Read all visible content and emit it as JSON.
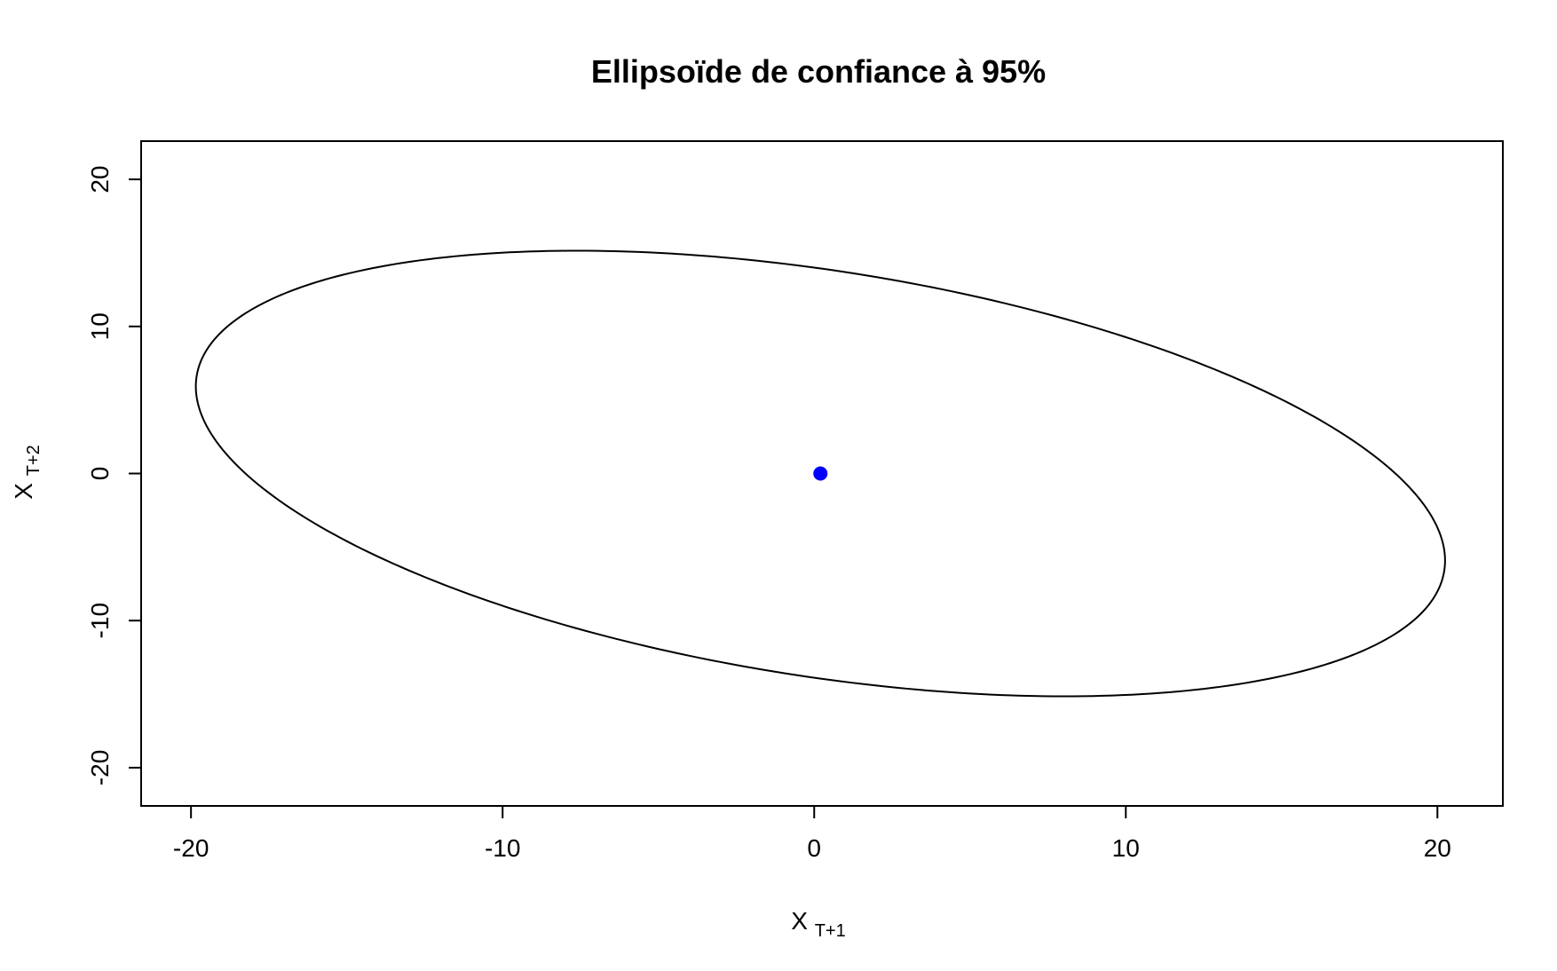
{
  "chart_data": {
    "type": "scatter",
    "title": "Ellipsoïde de confiance à 95%",
    "xlabel": {
      "main": "X",
      "sub": "T+1"
    },
    "ylabel": {
      "main": "X",
      "sub": "T+2"
    },
    "xlim": [
      -21.6,
      22.1
    ],
    "ylim": [
      -22.6,
      22.6
    ],
    "x_ticks": [
      -20,
      -10,
      0,
      10,
      20
    ],
    "y_ticks": [
      -20,
      -10,
      0,
      10,
      20
    ],
    "x_tick_labels": [
      "-20",
      "-10",
      "0",
      "10",
      "20"
    ],
    "y_tick_labels": [
      "-20",
      "-10",
      "0",
      "10",
      "20"
    ],
    "grid": false,
    "legend": "none",
    "series": [
      {
        "kind": "ellipse",
        "center": [
          0.2,
          0
        ],
        "semi_axes": [
          21.5,
          13.0
        ],
        "rotation_deg": -27,
        "color": "#000000"
      },
      {
        "kind": "point",
        "x": [
          0.2
        ],
        "y": [
          0
        ],
        "color": "#0000ff"
      }
    ]
  }
}
